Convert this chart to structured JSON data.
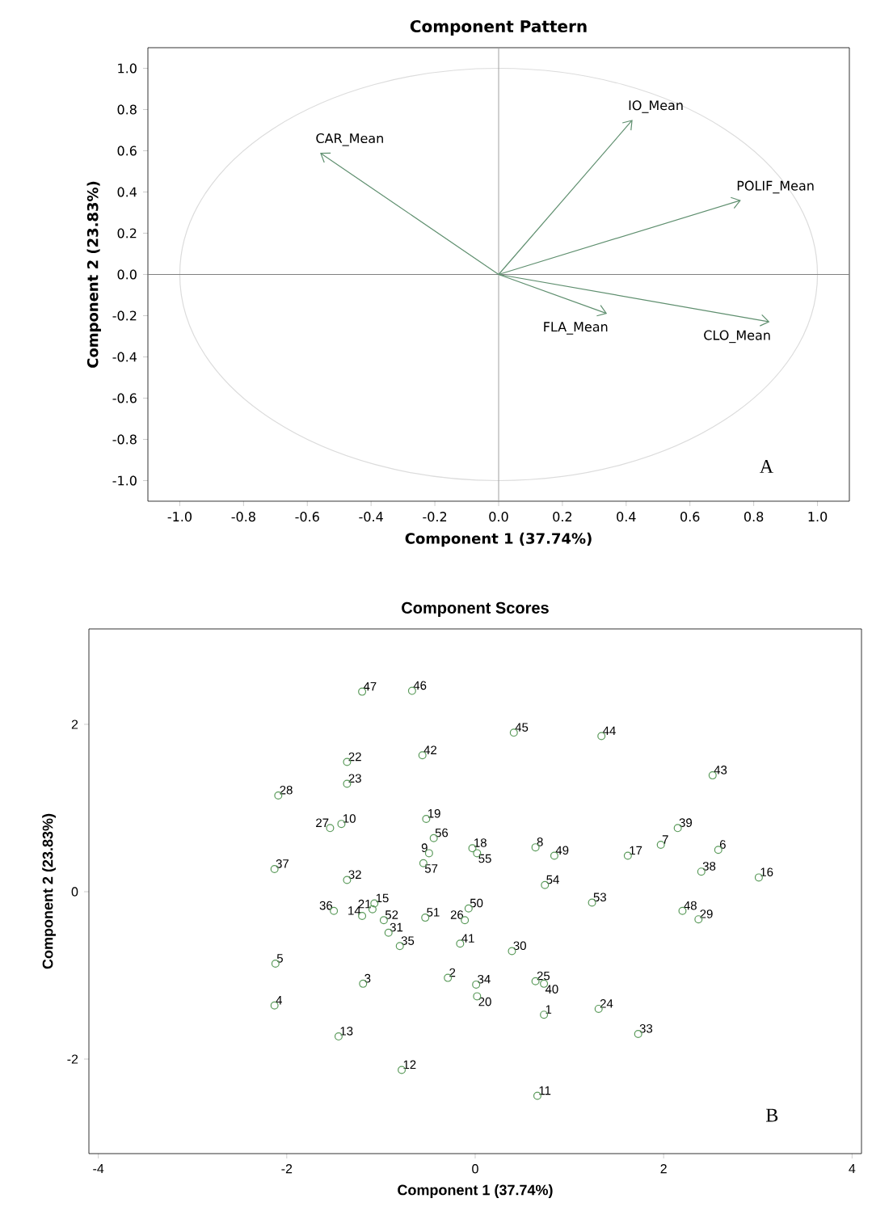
{
  "chart_data": [
    {
      "type": "line",
      "title": "Component Pattern",
      "xlabel": "Component 1 (37.74%)",
      "ylabel": "Component 2 (23.83%)",
      "xlim": [
        -1.1,
        1.1
      ],
      "ylim": [
        -1.1,
        1.1
      ],
      "xticks": [
        {
          "value": -1.0,
          "label": "-1.0"
        },
        {
          "value": -0.8,
          "label": "-0.8"
        },
        {
          "value": -0.6,
          "label": "-0.6"
        },
        {
          "value": -0.4,
          "label": "-0.4"
        },
        {
          "value": -0.2,
          "label": "-0.2"
        },
        {
          "value": 0,
          "label": "0.0"
        },
        {
          "value": 0.2,
          "label": "0.2"
        },
        {
          "value": 0.4,
          "label": "0.4"
        },
        {
          "value": 0.6,
          "label": "0.6"
        },
        {
          "value": 0.8,
          "label": "0.8"
        },
        {
          "value": 1.0,
          "label": "1.0"
        }
      ],
      "yticks": [
        {
          "value": -1.0,
          "label": "-1.0"
        },
        {
          "value": -0.8,
          "label": "-0.8"
        },
        {
          "value": -0.6,
          "label": "-0.6"
        },
        {
          "value": -0.4,
          "label": "-0.4"
        },
        {
          "value": -0.2,
          "label": "-0.2"
        },
        {
          "value": 0,
          "label": "0.0"
        },
        {
          "value": 0.2,
          "label": "0.2"
        },
        {
          "value": 0.4,
          "label": "0.4"
        },
        {
          "value": 0.6,
          "label": "0.6"
        },
        {
          "value": 0.8,
          "label": "0.8"
        },
        {
          "value": 1.0,
          "label": "1.0"
        }
      ],
      "ref_lines": [
        {
          "axis": "x",
          "value": 0,
          "color": "#a0a0a0"
        },
        {
          "axis": "y",
          "value": 0,
          "color": "#808080"
        }
      ],
      "series": [
        {
          "x": [
            0,
            -0.56
          ],
          "values": [
            0,
            0.59
          ],
          "color": "#5f8f6f"
        },
        {
          "x": [
            0,
            0.42
          ],
          "values": [
            0,
            0.75
          ],
          "color": "#5f8f6f"
        },
        {
          "x": [
            0,
            0.76
          ],
          "values": [
            0,
            0.36
          ],
          "color": "#5f8f6f"
        },
        {
          "x": [
            0,
            0.34
          ],
          "values": [
            0,
            -0.19
          ],
          "color": "#5f8f6f"
        },
        {
          "x": [
            0,
            0.85
          ],
          "values": [
            0,
            -0.23
          ],
          "color": "#5f8f6f"
        }
      ],
      "annotations": [
        {
          "text": "CAR_Mean",
          "x": -0.56,
          "y": 0.59
        },
        {
          "text": "IO_Mean",
          "x": 0.42,
          "y": 0.75
        },
        {
          "text": "POLIF_Mean",
          "x": 0.76,
          "y": 0.36
        },
        {
          "text": "FLA_Mean",
          "x": 0.34,
          "y": -0.19
        },
        {
          "text": "CLO_Mean",
          "x": 0.85,
          "y": -0.23
        },
        "A"
      ]
    },
    {
      "type": "scatter",
      "title": "Component Scores",
      "xlabel": "Component 1 (37.74%)",
      "ylabel": "Component 2 (23.83%)",
      "xlim": [
        -4.1,
        4.1
      ],
      "ylim": [
        -3.13,
        3.14
      ],
      "xticks": [
        -4,
        -2,
        0,
        2,
        4
      ],
      "yticks": [
        -2,
        0,
        2
      ],
      "marker": "circle",
      "color": "#5a9a5a",
      "x": [
        0.73,
        -0.29,
        -1.19,
        -2.13,
        -2.12,
        2.58,
        1.97,
        0.64,
        -0.49,
        -1.42,
        0.66,
        -0.78,
        -1.45,
        -1.2,
        -1.07,
        3.01,
        1.62,
        -0.03,
        -0.52,
        0.02,
        -1.09,
        -1.36,
        -1.36,
        1.31,
        0.64,
        -0.11,
        -1.54,
        -2.09,
        2.37,
        0.39,
        -0.92,
        -1.36,
        1.73,
        0.01,
        -0.8,
        -1.5,
        -2.13,
        2.4,
        2.15,
        0.73,
        -0.16,
        -0.56,
        2.52,
        1.34,
        0.41,
        -0.67,
        -1.2,
        2.2,
        0.84,
        -0.07,
        -0.53,
        -0.97,
        1.24,
        0.74,
        0.02,
        -0.44,
        -0.55
      ],
      "values": [
        -1.47,
        -1.03,
        -1.1,
        -1.36,
        -0.86,
        0.5,
        0.56,
        0.53,
        0.46,
        0.81,
        -2.44,
        -2.13,
        -1.73,
        -0.29,
        -0.14,
        0.17,
        0.43,
        0.52,
        0.87,
        -1.25,
        -0.21,
        1.55,
        1.29,
        -1.4,
        -1.07,
        -0.34,
        0.76,
        1.15,
        -0.33,
        -0.71,
        -0.49,
        0.14,
        -1.7,
        -1.11,
        -0.65,
        -0.23,
        0.27,
        0.24,
        0.76,
        -1.1,
        -0.62,
        1.63,
        1.39,
        1.86,
        1.9,
        2.4,
        2.39,
        -0.23,
        0.43,
        -0.2,
        -0.31,
        -0.34,
        -0.13,
        0.08,
        0.46,
        0.64,
        0.34
      ],
      "annotations": [
        {
          "text": "1",
          "x": 0.73,
          "y": -1.47
        },
        {
          "text": "2",
          "x": -0.29,
          "y": -1.03
        },
        {
          "text": "3",
          "x": -1.19,
          "y": -1.1
        },
        {
          "text": "4",
          "x": -2.13,
          "y": -1.36
        },
        {
          "text": "5",
          "x": -2.12,
          "y": -0.86
        },
        {
          "text": "6",
          "x": 2.58,
          "y": 0.5
        },
        {
          "text": "7",
          "x": 1.97,
          "y": 0.56
        },
        {
          "text": "8",
          "x": 0.64,
          "y": 0.53
        },
        {
          "text": "9",
          "x": -0.49,
          "y": 0.46
        },
        {
          "text": "10",
          "x": -1.42,
          "y": 0.81
        },
        {
          "text": "11",
          "x": 0.66,
          "y": -2.44
        },
        {
          "text": "12",
          "x": -0.78,
          "y": -2.13
        },
        {
          "text": "13",
          "x": -1.45,
          "y": -1.73
        },
        {
          "text": "14",
          "x": -1.2,
          "y": -0.29
        },
        {
          "text": "15",
          "x": -1.07,
          "y": -0.14
        },
        {
          "text": "16",
          "x": 3.01,
          "y": 0.17
        },
        {
          "text": "17",
          "x": 1.62,
          "y": 0.43
        },
        {
          "text": "18",
          "x": -0.03,
          "y": 0.52
        },
        {
          "text": "19",
          "x": -0.52,
          "y": 0.87
        },
        {
          "text": "20",
          "x": 0.02,
          "y": -1.25
        },
        {
          "text": "21",
          "x": -1.09,
          "y": -0.21
        },
        {
          "text": "22",
          "x": -1.36,
          "y": 1.55
        },
        {
          "text": "23",
          "x": -1.36,
          "y": 1.29
        },
        {
          "text": "24",
          "x": 1.31,
          "y": -1.4
        },
        {
          "text": "25",
          "x": 0.64,
          "y": -1.07
        },
        {
          "text": "26",
          "x": -0.11,
          "y": -0.34
        },
        {
          "text": "27",
          "x": -1.54,
          "y": 0.76
        },
        {
          "text": "28",
          "x": -2.09,
          "y": 1.15
        },
        {
          "text": "29",
          "x": 2.37,
          "y": -0.33
        },
        {
          "text": "30",
          "x": 0.39,
          "y": -0.71
        },
        {
          "text": "31",
          "x": -0.92,
          "y": -0.49
        },
        {
          "text": "32",
          "x": -1.36,
          "y": 0.14
        },
        {
          "text": "33",
          "x": 1.73,
          "y": -1.7
        },
        {
          "text": "34",
          "x": 0.01,
          "y": -1.11
        },
        {
          "text": "35",
          "x": -0.8,
          "y": -0.65
        },
        {
          "text": "36",
          "x": -1.5,
          "y": -0.23
        },
        {
          "text": "37",
          "x": -2.13,
          "y": 0.27
        },
        {
          "text": "38",
          "x": 2.4,
          "y": 0.24
        },
        {
          "text": "39",
          "x": 2.15,
          "y": 0.76
        },
        {
          "text": "40",
          "x": 0.73,
          "y": -1.1
        },
        {
          "text": "41",
          "x": -0.16,
          "y": -0.62
        },
        {
          "text": "42",
          "x": -0.56,
          "y": 1.63
        },
        {
          "text": "43",
          "x": 2.52,
          "y": 1.39
        },
        {
          "text": "44",
          "x": 1.34,
          "y": 1.86
        },
        {
          "text": "45",
          "x": 0.41,
          "y": 1.9
        },
        {
          "text": "46",
          "x": -0.67,
          "y": 2.4
        },
        {
          "text": "47",
          "x": -1.2,
          "y": 2.39
        },
        {
          "text": "48",
          "x": 2.2,
          "y": -0.23
        },
        {
          "text": "49",
          "x": 0.84,
          "y": 0.43
        },
        {
          "text": "50",
          "x": -0.07,
          "y": -0.2
        },
        {
          "text": "51",
          "x": -0.53,
          "y": -0.31
        },
        {
          "text": "52",
          "x": -0.97,
          "y": -0.34
        },
        {
          "text": "53",
          "x": 1.24,
          "y": -0.13
        },
        {
          "text": "54",
          "x": 0.74,
          "y": 0.08
        },
        {
          "text": "55",
          "x": 0.02,
          "y": 0.46
        },
        {
          "text": "56",
          "x": -0.44,
          "y": 0.64
        },
        {
          "text": "57",
          "x": -0.55,
          "y": 0.34
        },
        "B"
      ]
    }
  ]
}
